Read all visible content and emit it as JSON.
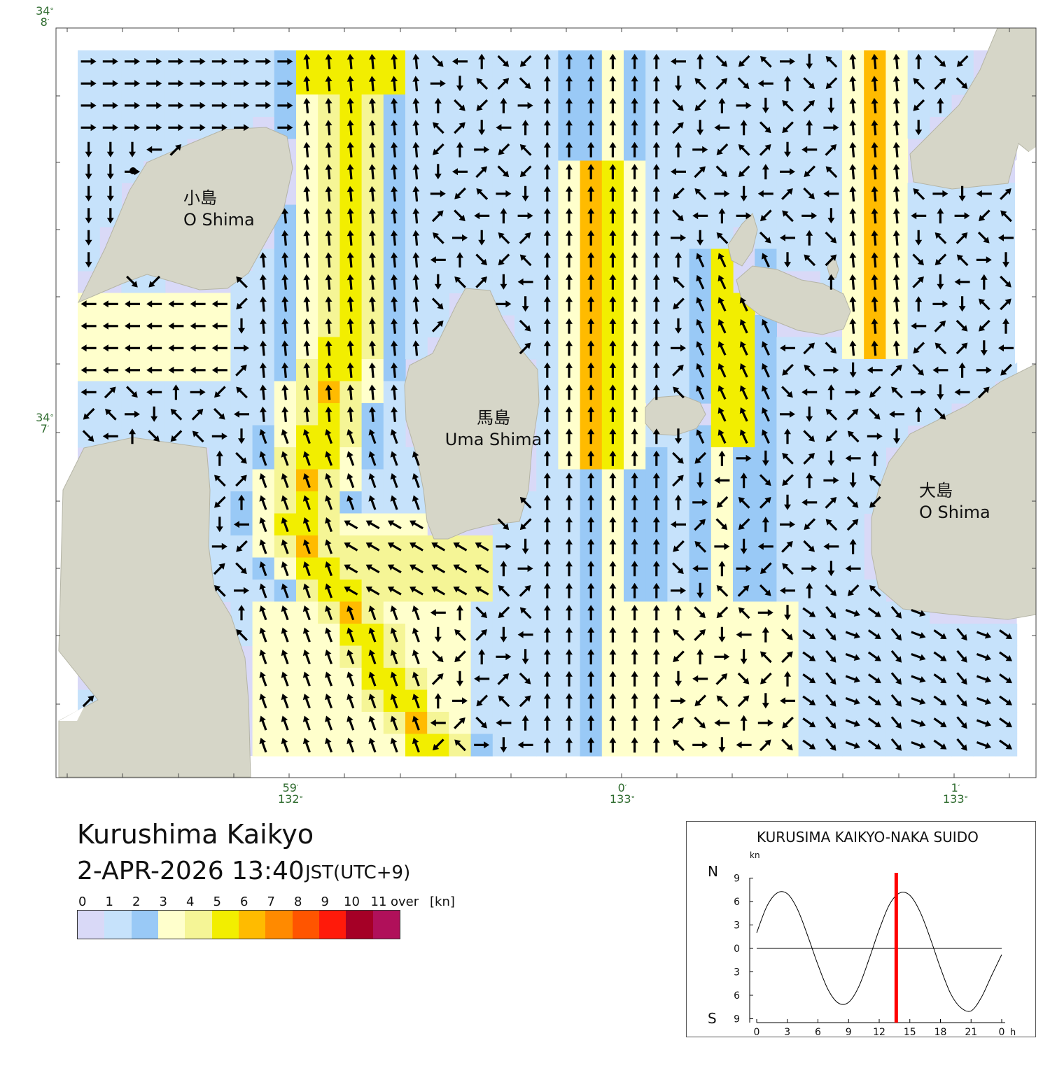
{
  "title": "Kurushima Kaikyo",
  "datetime": "2-APR-2026 13:40",
  "timezone": "JST(UTC+9)",
  "islands": [
    {
      "jp": "小島",
      "en": "O Shima"
    },
    {
      "jp": "馬島",
      "en": "Uma Shima"
    },
    {
      "jp": "大島",
      "en": "O Shima"
    }
  ],
  "lat_labels": [
    {
      "deg": "34",
      "min": "8"
    },
    {
      "deg": "34",
      "min": "7"
    }
  ],
  "lon_labels": [
    {
      "min": "59",
      "deg": "132"
    },
    {
      "min": "0",
      "deg": "133"
    },
    {
      "min": "1",
      "deg": "133"
    }
  ],
  "legend": {
    "labels": [
      "0",
      "1",
      "2",
      "3",
      "4",
      "5",
      "6",
      "7",
      "8",
      "9",
      "10",
      "11"
    ],
    "over_label": "over",
    "unit": "[kn]",
    "colors": [
      "#d9d9f7",
      "#c6e2fb",
      "#99c9f6",
      "#ffffcc",
      "#f5f596",
      "#f2ee00",
      "#ffbb00",
      "#ff8a00",
      "#ff5500",
      "#ff1a0a",
      "#a50026",
      "#b0105a"
    ]
  },
  "colors": {
    "land": "#d6d6c8",
    "water_default": "#d9d9f7",
    "coord_text": "#2e6b2e",
    "tide_marker": "#ff0000"
  },
  "tide_chart": {
    "title": "KURUSIMA KAIKYO-NAKA SUIDO",
    "unit": "kn",
    "north_label": "N",
    "south_label": "S",
    "y_ticks": [
      "9",
      "6",
      "3",
      "0",
      "3",
      "6",
      "9"
    ],
    "x_ticks": [
      "0",
      "3",
      "6",
      "9",
      "12",
      "15",
      "18",
      "21",
      "0"
    ],
    "x_unit": "h",
    "current_hour": 13.67,
    "chart_data": {
      "type": "line",
      "x": [
        0,
        1,
        2,
        3,
        4,
        5,
        6,
        7,
        8,
        9,
        10,
        11,
        12,
        13,
        14,
        15,
        16,
        17,
        18,
        19,
        20,
        21,
        22,
        23,
        24
      ],
      "series": [
        {
          "values": [
            2.0,
            5.4,
            7.1,
            7.0,
            5.0,
            1.6,
            -2.1,
            -5.3,
            -7.0,
            -6.9,
            -4.9,
            -1.4,
            2.4,
            5.6,
            7.1,
            6.8,
            4.7,
            1.3,
            -2.5,
            -5.8,
            -7.6,
            -8.0,
            -6.3,
            -3.5,
            -0.8
          ]
        }
      ],
      "ylim": [
        -9.5,
        9.5
      ],
      "xlim": [
        0,
        24
      ]
    }
  }
}
